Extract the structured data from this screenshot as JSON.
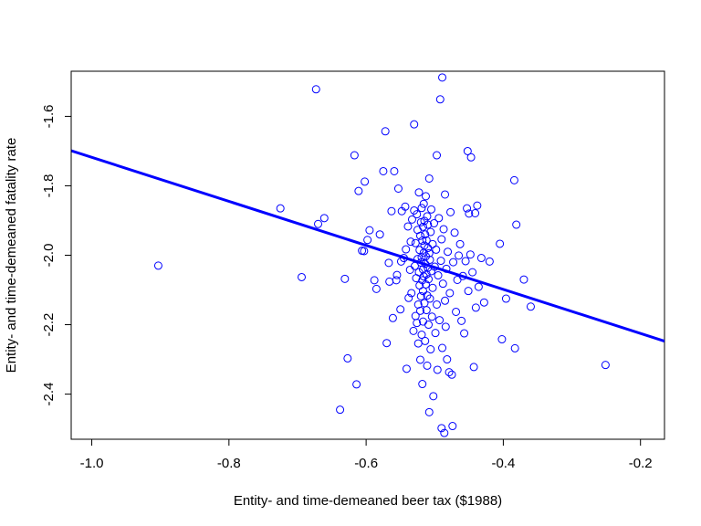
{
  "chart_data": {
    "type": "scatter",
    "title": "",
    "xlabel": "Entity- and time-demeaned beer tax ($1988)",
    "ylabel": "Entity- and time-demeaned fatality rate",
    "xlim": [
      -1.03,
      -0.165
    ],
    "ylim": [
      -2.53,
      -1.47
    ],
    "x_ticks": [
      -1.0,
      -0.8,
      -0.6,
      -0.4,
      -0.2
    ],
    "x_tick_labels": [
      "-1.0",
      "-0.8",
      "-0.6",
      "-0.4",
      "-0.2"
    ],
    "y_ticks": [
      -2.4,
      -2.2,
      -2.0,
      -1.8,
      -1.6
    ],
    "y_tick_labels": [
      "-2.4",
      "-2.2",
      "-2.0",
      "-1.8",
      "-1.6"
    ],
    "grid": false,
    "point_color": "#0000ff",
    "line_color": "#0000ff",
    "regression_line": {
      "intercept": -2.352,
      "slope": -0.634
    },
    "points": [
      [
        -0.903,
        -2.03
      ],
      [
        -0.725,
        -1.865
      ],
      [
        -0.694,
        -2.063
      ],
      [
        -0.673,
        -1.522
      ],
      [
        -0.67,
        -1.91
      ],
      [
        -0.661,
        -1.893
      ],
      [
        -0.638,
        -2.445
      ],
      [
        -0.631,
        -2.068
      ],
      [
        -0.627,
        -2.297
      ],
      [
        -0.617,
        -1.712
      ],
      [
        -0.614,
        -2.372
      ],
      [
        -0.611,
        -1.815
      ],
      [
        -0.606,
        -1.987
      ],
      [
        -0.602,
        -1.788
      ],
      [
        -0.603,
        -1.988
      ],
      [
        -0.598,
        -1.956
      ],
      [
        -0.595,
        -1.928
      ],
      [
        -0.588,
        -2.072
      ],
      [
        -0.585,
        -2.097
      ],
      [
        -0.58,
        -1.94
      ],
      [
        -0.575,
        -1.758
      ],
      [
        -0.572,
        -1.643
      ],
      [
        -0.57,
        -2.253
      ],
      [
        -0.567,
        -2.022
      ],
      [
        -0.566,
        -2.076
      ],
      [
        -0.563,
        -1.873
      ],
      [
        -0.561,
        -2.181
      ],
      [
        -0.559,
        -1.758
      ],
      [
        -0.556,
        -2.072
      ],
      [
        -0.555,
        -2.057
      ],
      [
        -0.553,
        -1.808
      ],
      [
        -0.55,
        -2.156
      ],
      [
        -0.549,
        -2.018
      ],
      [
        -0.548,
        -1.873
      ],
      [
        -0.545,
        -2.008
      ],
      [
        -0.543,
        -1.86
      ],
      [
        -0.542,
        -1.983
      ],
      [
        -0.541,
        -2.327
      ],
      [
        -0.539,
        -1.917
      ],
      [
        -0.538,
        -2.123
      ],
      [
        -0.536,
        -2.042
      ],
      [
        -0.535,
        -1.961
      ],
      [
        -0.534,
        -2.109
      ],
      [
        -0.533,
        -1.897
      ],
      [
        -0.531,
        -2.218
      ],
      [
        -0.53,
        -1.871
      ],
      [
        -0.53,
        -1.623
      ],
      [
        -0.529,
        -2.031
      ],
      [
        -0.528,
        -1.965
      ],
      [
        -0.528,
        -2.175
      ],
      [
        -0.527,
        -2.066
      ],
      [
        -0.526,
        -1.882
      ],
      [
        -0.526,
        -2.195
      ],
      [
        -0.525,
        -2.011
      ],
      [
        -0.525,
        -1.927
      ],
      [
        -0.524,
        -2.142
      ],
      [
        -0.524,
        -2.254
      ],
      [
        -0.523,
        -2.049
      ],
      [
        -0.523,
        -1.819
      ],
      [
        -0.522,
        -1.985
      ],
      [
        -0.522,
        -2.087
      ],
      [
        -0.521,
        -1.944
      ],
      [
        -0.521,
        -2.301
      ],
      [
        -0.521,
        -2.16
      ],
      [
        -0.52,
        -2.021
      ],
      [
        -0.52,
        -1.905
      ],
      [
        -0.52,
        -2.118
      ],
      [
        -0.519,
        -2.006
      ],
      [
        -0.519,
        -1.864
      ],
      [
        -0.519,
        -2.229
      ],
      [
        -0.518,
        -2.072
      ],
      [
        -0.518,
        -1.958
      ],
      [
        -0.518,
        -2.371
      ],
      [
        -0.517,
        -2.041
      ],
      [
        -0.517,
        -1.918
      ],
      [
        -0.517,
        -2.191
      ],
      [
        -0.517,
        -2.103
      ],
      [
        -0.516,
        -1.993
      ],
      [
        -0.516,
        -1.852
      ],
      [
        -0.516,
        -2.061
      ],
      [
        -0.515,
        -1.972
      ],
      [
        -0.515,
        -2.138
      ],
      [
        -0.515,
        -1.901
      ],
      [
        -0.514,
        -2.025
      ],
      [
        -0.514,
        -2.247
      ],
      [
        -0.514,
        -1.94
      ],
      [
        -0.513,
        -2.084
      ],
      [
        -0.513,
        -1.83
      ],
      [
        -0.513,
        -2.003
      ],
      [
        -0.512,
        -2.158
      ],
      [
        -0.512,
        -1.957
      ],
      [
        -0.512,
        -2.055
      ],
      [
        -0.511,
        -1.888
      ],
      [
        -0.511,
        -2.116
      ],
      [
        -0.511,
        -2.318
      ],
      [
        -0.51,
        -1.979
      ],
      [
        -0.51,
        -2.036
      ],
      [
        -0.51,
        -1.912
      ],
      [
        -0.509,
        -2.2
      ],
      [
        -0.509,
        -2.069
      ],
      [
        -0.508,
        -1.994
      ],
      [
        -0.508,
        -2.452
      ],
      [
        -0.508,
        -1.779
      ],
      [
        -0.507,
        -2.125
      ],
      [
        -0.507,
        -2.013
      ],
      [
        -0.506,
        -1.933
      ],
      [
        -0.506,
        -2.271
      ],
      [
        -0.505,
        -2.046
      ],
      [
        -0.505,
        -1.868
      ],
      [
        -0.504,
        -2.177
      ],
      [
        -0.503,
        -1.968
      ],
      [
        -0.503,
        -2.094
      ],
      [
        -0.502,
        -2.406
      ],
      [
        -0.501,
        -1.908
      ],
      [
        -0.5,
        -2.033
      ],
      [
        -0.499,
        -2.224
      ],
      [
        -0.498,
        -1.984
      ],
      [
        -0.497,
        -1.712
      ],
      [
        -0.497,
        -2.142
      ],
      [
        -0.496,
        -2.33
      ],
      [
        -0.495,
        -2.058
      ],
      [
        -0.494,
        -1.893
      ],
      [
        -0.493,
        -2.187
      ],
      [
        -0.492,
        -1.551
      ],
      [
        -0.491,
        -2.016
      ],
      [
        -0.49,
        -2.498
      ],
      [
        -0.49,
        -1.954
      ],
      [
        -0.489,
        -1.488
      ],
      [
        -0.489,
        -2.267
      ],
      [
        -0.488,
        -2.082
      ],
      [
        -0.487,
        -1.925
      ],
      [
        -0.486,
        -2.512
      ],
      [
        -0.485,
        -2.131
      ],
      [
        -0.485,
        -1.825
      ],
      [
        -0.484,
        -2.206
      ],
      [
        -0.483,
        -2.039
      ],
      [
        -0.482,
        -2.3
      ],
      [
        -0.481,
        -1.99
      ],
      [
        -0.479,
        -2.337
      ],
      [
        -0.478,
        -2.109
      ],
      [
        -0.477,
        -1.876
      ],
      [
        -0.475,
        -2.344
      ],
      [
        -0.474,
        -2.492
      ],
      [
        -0.473,
        -2.02
      ],
      [
        -0.471,
        -1.935
      ],
      [
        -0.469,
        -2.163
      ],
      [
        -0.467,
        -2.071
      ],
      [
        -0.465,
        -2.001
      ],
      [
        -0.463,
        -1.968
      ],
      [
        -0.461,
        -2.189
      ],
      [
        -0.459,
        -2.06
      ],
      [
        -0.457,
        -2.225
      ],
      [
        -0.455,
        -2.017
      ],
      [
        -0.453,
        -1.865
      ],
      [
        -0.452,
        -1.7
      ],
      [
        -0.451,
        -2.103
      ],
      [
        -0.45,
        -1.88
      ],
      [
        -0.448,
        -1.998
      ],
      [
        -0.447,
        -1.718
      ],
      [
        -0.445,
        -2.049
      ],
      [
        -0.443,
        -2.322
      ],
      [
        -0.441,
        -1.879
      ],
      [
        -0.44,
        -2.151
      ],
      [
        -0.438,
        -1.857
      ],
      [
        -0.436,
        -2.091
      ],
      [
        -0.432,
        -2.008
      ],
      [
        -0.428,
        -2.136
      ],
      [
        -0.42,
        -2.018
      ],
      [
        -0.405,
        -1.967
      ],
      [
        -0.402,
        -2.242
      ],
      [
        -0.396,
        -2.125
      ],
      [
        -0.384,
        -1.784
      ],
      [
        -0.383,
        -2.268
      ],
      [
        -0.381,
        -1.912
      ],
      [
        -0.37,
        -2.07
      ],
      [
        -0.36,
        -2.148
      ],
      [
        -0.251,
        -2.316
      ]
    ]
  }
}
